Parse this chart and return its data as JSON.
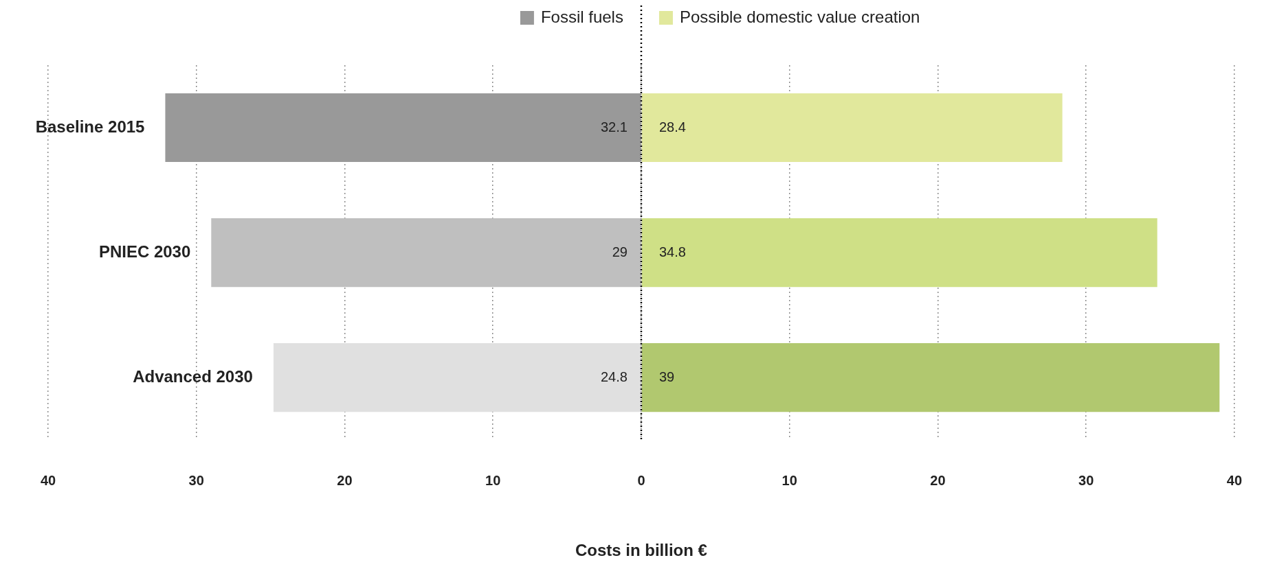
{
  "chart_data": {
    "type": "bar",
    "orientation": "horizontal",
    "legend": "top",
    "xlabel": "Costs in billion €",
    "categories": [
      "Baseline 2015",
      "PNIEC 2030",
      "Advanced 2030"
    ],
    "series": [
      {
        "name": "Fossil fuels",
        "colors": [
          "#999999",
          "#bfbfbf",
          "#e0e0e0"
        ],
        "values": [
          32.1,
          29,
          24.8
        ],
        "base": [
          -32.1,
          -29,
          -24.8
        ],
        "value_labels": [
          "32.1",
          "29",
          "24.8"
        ]
      },
      {
        "name": "Possible domestic value creation",
        "colors": [
          "#e1e89c",
          "#cfe086",
          "#b1c86f"
        ],
        "values": [
          28.4,
          34.8,
          39
        ],
        "value_labels": [
          "28.4",
          "34.8",
          "39"
        ]
      }
    ],
    "xlim": [
      -40,
      40
    ],
    "xticks": [
      {
        "value": -40,
        "label": "40"
      },
      {
        "value": -30,
        "label": "30"
      },
      {
        "value": -20,
        "label": "20"
      },
      {
        "value": -10,
        "label": "10"
      },
      0,
      10,
      20,
      30,
      40
    ],
    "grid": "x",
    "ref_lines": [
      {
        "axis": "x",
        "value": 0,
        "color": "#000000",
        "line_style": "dotted"
      }
    ]
  }
}
